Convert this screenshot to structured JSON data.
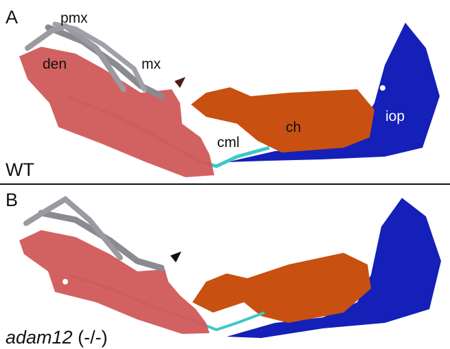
{
  "panels": [
    {
      "label": "A",
      "genotype": "WT",
      "annotations": [
        "pmx",
        "mx",
        "den",
        "cml",
        "ch",
        "iop"
      ]
    },
    {
      "label": "B",
      "genotype_name": "adam12",
      "genotype_suffix": "(-/-)"
    }
  ]
}
